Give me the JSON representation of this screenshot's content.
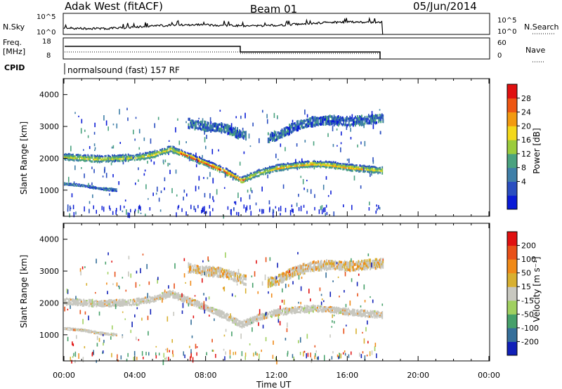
{
  "header": {
    "site": "Adak West (fitACF)",
    "beam": "Beam 01",
    "date": "05/Jun/2014"
  },
  "top_panels": {
    "nsky": {
      "label": "N.Sky",
      "left_ticks": [
        "10^5",
        "10^0"
      ],
      "right_ticks": [
        "10^5",
        "10^0"
      ],
      "right_label": "N.Search"
    },
    "freq": {
      "label_line1": "Freq.",
      "label_line2": "[MHz]",
      "left_ticks": [
        "18",
        "8"
      ],
      "right_ticks": [
        "60",
        "0"
      ],
      "right_label": "Nave"
    },
    "cpid": {
      "label": "CPID",
      "program": "normalsound (fast) 157 RF"
    }
  },
  "colors": {
    "power_scale": [
      "#0a1bd6",
      "#2a4ec0",
      "#3f7fa8",
      "#4aa27f",
      "#9bcc3c",
      "#f3d81b",
      "#f29a10",
      "#ee5612",
      "#e01010"
    ],
    "velocity_scale": [
      "#1020b8",
      "#356f9a",
      "#46a06a",
      "#a0d060",
      "#c8c8c0",
      "#d8b030",
      "#f08a18",
      "#e85018",
      "#e01010"
    ]
  },
  "chart_data": [
    {
      "type": "heatmap",
      "name": "power-panel",
      "ylabel": "Slant Range [km]",
      "colorbar_label": "Power [dB]",
      "colorbar_ticks": [
        "28",
        "24",
        "20",
        "16",
        "12",
        "8",
        "4"
      ],
      "x_ticks": [
        "00:00",
        "04:00",
        "08:00",
        "12:00",
        "16:00",
        "20:00",
        "00:00"
      ],
      "y_ticks": [
        "4000",
        "3000",
        "2000",
        "1000"
      ],
      "xlim": [
        0,
        24
      ],
      "ylim": [
        180,
        4500
      ],
      "layers": [
        {
          "x": [
            0,
            2,
            4,
            5,
            6,
            7,
            8,
            9,
            10,
            11,
            12,
            13,
            14,
            15,
            16,
            17,
            18
          ],
          "y": [
            2050,
            1980,
            2030,
            2120,
            2300,
            2080,
            1850,
            1620,
            1320,
            1550,
            1700,
            1780,
            1830,
            1800,
            1720,
            1670,
            1620
          ],
          "width_km": 200,
          "level": 0.45
        },
        {
          "x": [
            7.0,
            8,
            9,
            10,
            11,
            12,
            13,
            14,
            15,
            16,
            17,
            18
          ],
          "y": [
            3100,
            3000,
            2950,
            2750,
            2600,
            2700,
            3000,
            3150,
            3200,
            3150,
            3200,
            3250
          ],
          "width_km": 280,
          "level": 0.15
        },
        {
          "x": [
            0,
            1,
            2,
            3
          ],
          "y": [
            1200,
            1150,
            1050,
            1000
          ],
          "width_km": 90,
          "level": 0.1
        }
      ]
    },
    {
      "type": "heatmap",
      "name": "velocity-panel",
      "ylabel": "Slant Range [km]",
      "xlabel": "Time UT",
      "colorbar_label": "Velocity [m s⁻¹]",
      "colorbar_ticks": [
        "200",
        "100",
        "50",
        "15",
        "-15",
        "-50",
        "-100",
        "-200"
      ],
      "x_ticks": [
        "00:00",
        "04:00",
        "08:00",
        "12:00",
        "16:00",
        "20:00",
        "00:00"
      ],
      "y_ticks": [
        "4000",
        "3000",
        "2000",
        "1000"
      ],
      "xlim": [
        0,
        24
      ],
      "ylim": [
        180,
        4500
      ]
    }
  ]
}
